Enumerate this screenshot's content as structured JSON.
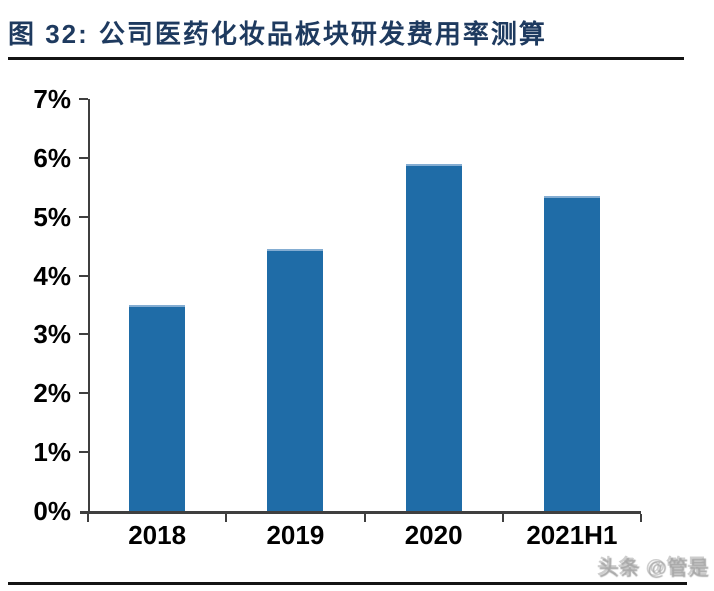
{
  "figure": {
    "label": "图 32:",
    "title": "公司医药化妆品板块研发费用率测算"
  },
  "watermark": "头条 @管是",
  "colors": {
    "title_text": "#1e3a5f",
    "rule": "#141414",
    "axis": "#3f3f3f",
    "bar": "#1f6ca7",
    "bar_top_edge": "#84add2",
    "axis_label": "#000000",
    "watermark": "#a5a5a5"
  },
  "chart_data": {
    "type": "bar",
    "title": "公司医药化妆品板块研发费用率测算",
    "categories": [
      "2018",
      "2019",
      "2020",
      "2021H1"
    ],
    "values": [
      3.5,
      4.45,
      5.9,
      5.35
    ],
    "unit": "%",
    "xlabel": "",
    "ylabel": "",
    "ylim": [
      0,
      7
    ],
    "ytick_step": 1,
    "ytick_labels": [
      "0%",
      "1%",
      "2%",
      "3%",
      "4%",
      "5%",
      "6%",
      "7%"
    ],
    "grid": false,
    "legend": null,
    "bar_color": "#1f6ca7"
  }
}
